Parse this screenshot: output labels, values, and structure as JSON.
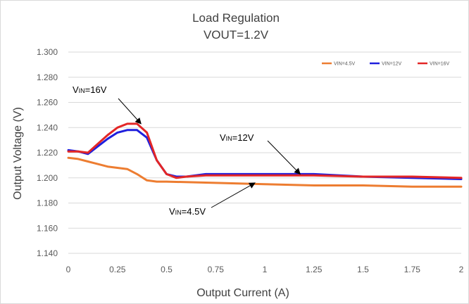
{
  "chart_data": {
    "type": "line",
    "title": "Load Regulation",
    "subtitle": "VOUT=1.2V",
    "xlabel": "Output Current (A)",
    "ylabel": "Output Voltage (V)",
    "xlim": [
      0,
      2
    ],
    "ylim": [
      1.14,
      1.3
    ],
    "x_ticks": [
      "0",
      "0.25",
      "0.5",
      "0.75",
      "1",
      "1.25",
      "1.5",
      "1.75",
      "2"
    ],
    "y_ticks": [
      "1.300",
      "1.280",
      "1.260",
      "1.240",
      "1.220",
      "1.200",
      "1.180",
      "1.160",
      "1.140"
    ],
    "grid": "horizontal",
    "legend_position": "top-right",
    "series": [
      {
        "name": "VIN=4.5V",
        "color": "#ED7D31",
        "points": [
          [
            0,
            1.216
          ],
          [
            0.05,
            1.215
          ],
          [
            0.1,
            1.213
          ],
          [
            0.15,
            1.211
          ],
          [
            0.2,
            1.209
          ],
          [
            0.3,
            1.207
          ],
          [
            0.35,
            1.203
          ],
          [
            0.4,
            1.198
          ],
          [
            0.45,
            1.197
          ],
          [
            0.5,
            1.197
          ],
          [
            0.75,
            1.196
          ],
          [
            1.0,
            1.195
          ],
          [
            1.25,
            1.194
          ],
          [
            1.5,
            1.194
          ],
          [
            1.75,
            1.193
          ],
          [
            2.0,
            1.193
          ]
        ]
      },
      {
        "name": "VIN=12V",
        "color": "#1F1FDD",
        "points": [
          [
            0,
            1.222
          ],
          [
            0.05,
            1.221
          ],
          [
            0.1,
            1.219
          ],
          [
            0.15,
            1.225
          ],
          [
            0.2,
            1.231
          ],
          [
            0.25,
            1.236
          ],
          [
            0.3,
            1.238
          ],
          [
            0.35,
            1.238
          ],
          [
            0.4,
            1.232
          ],
          [
            0.45,
            1.214
          ],
          [
            0.5,
            1.203
          ],
          [
            0.55,
            1.201
          ],
          [
            0.6,
            1.201
          ],
          [
            0.7,
            1.203
          ],
          [
            1.0,
            1.203
          ],
          [
            1.25,
            1.203
          ],
          [
            1.5,
            1.201
          ],
          [
            1.75,
            1.2
          ],
          [
            2.0,
            1.199
          ]
        ]
      },
      {
        "name": "VIN=16V",
        "color": "#E32626",
        "points": [
          [
            0,
            1.221
          ],
          [
            0.05,
            1.221
          ],
          [
            0.1,
            1.22
          ],
          [
            0.15,
            1.227
          ],
          [
            0.2,
            1.234
          ],
          [
            0.25,
            1.24
          ],
          [
            0.3,
            1.243
          ],
          [
            0.35,
            1.243
          ],
          [
            0.4,
            1.236
          ],
          [
            0.45,
            1.214
          ],
          [
            0.5,
            1.203
          ],
          [
            0.55,
            1.2
          ],
          [
            0.6,
            1.201
          ],
          [
            0.7,
            1.202
          ],
          [
            1.0,
            1.202
          ],
          [
            1.25,
            1.202
          ],
          [
            1.5,
            1.201
          ],
          [
            1.75,
            1.201
          ],
          [
            2.0,
            1.2
          ]
        ]
      }
    ],
    "annotations": [
      {
        "text_main": "V",
        "text_sub": "IN",
        "text_rest": "=16V",
        "target": [
          0.37,
          1.243
        ]
      },
      {
        "text_main": "V",
        "text_sub": "IN",
        "text_rest": "=12V",
        "target": [
          1.18,
          1.203
        ]
      },
      {
        "text_main": "V",
        "text_sub": "IN",
        "text_rest": "=4.5V",
        "target": [
          0.95,
          1.196
        ]
      }
    ]
  }
}
